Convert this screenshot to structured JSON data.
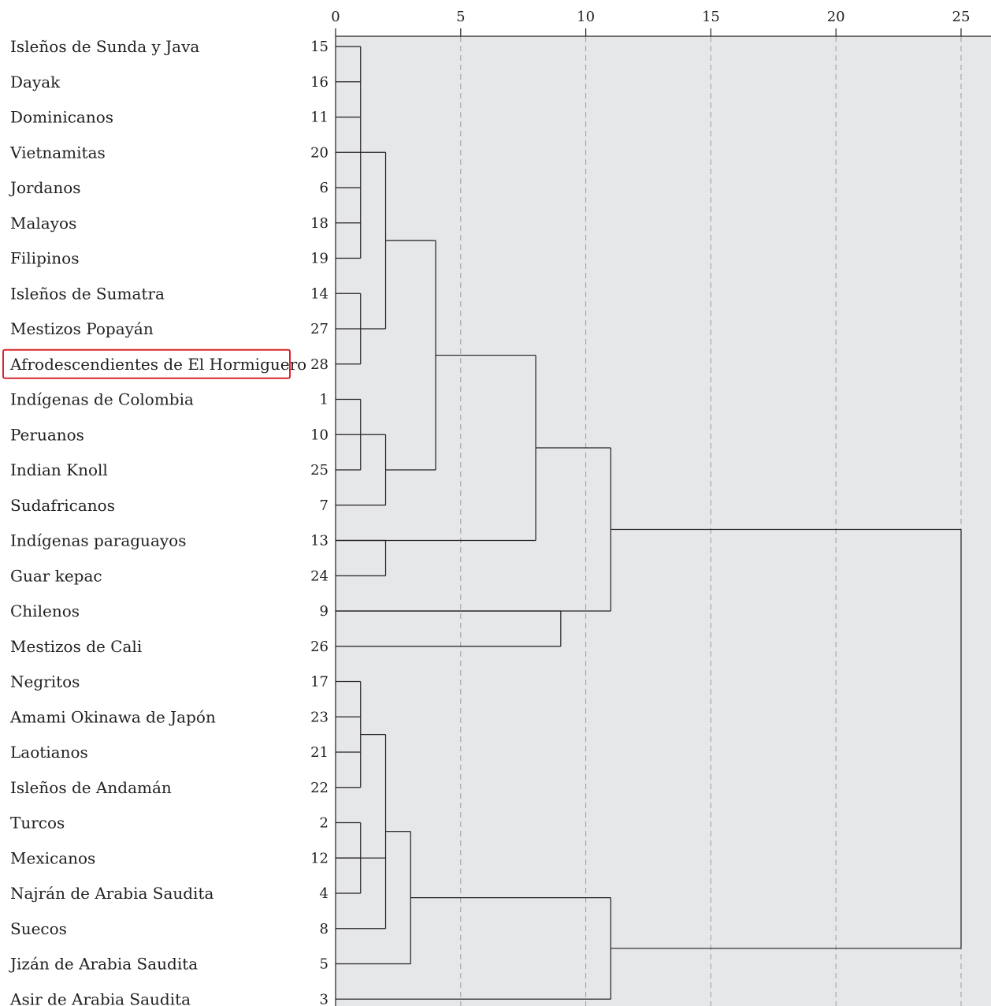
{
  "highlight_color": "#d7262b",
  "chart_data": {
    "type": "dendrogram",
    "title": "",
    "xlabel": "",
    "ylabel": "",
    "xlim": [
      0,
      25
    ],
    "x_ticks": [
      0,
      5,
      10,
      15,
      20,
      25
    ],
    "grid": "vertical dashed",
    "plot_background": "#e6e7e9",
    "highlighted_leaf": "Afrodescendientes de El Hormiguero",
    "leaves": [
      {
        "name": "Isleños de Sunda y Java",
        "id": "15"
      },
      {
        "name": "Dayak",
        "id": "16"
      },
      {
        "name": "Dominicanos",
        "id": "11"
      },
      {
        "name": "Vietnamitas",
        "id": "20"
      },
      {
        "name": "Jordanos",
        "id": "6"
      },
      {
        "name": "Malayos",
        "id": "18"
      },
      {
        "name": "Filipinos",
        "id": "19"
      },
      {
        "name": "Isleños de Sumatra",
        "id": "14"
      },
      {
        "name": "Mestizos Popayán",
        "id": "27"
      },
      {
        "name": "Afrodescendientes de El Hormiguero",
        "id": "28"
      },
      {
        "name": "Indígenas de Colombia",
        "id": "1"
      },
      {
        "name": "Peruanos",
        "id": "10"
      },
      {
        "name": "Indian Knoll",
        "id": "25"
      },
      {
        "name": "Sudafricanos",
        "id": "7"
      },
      {
        "name": "Indígenas paraguayos",
        "id": "13"
      },
      {
        "name": "Guar kepac",
        "id": "24"
      },
      {
        "name": "Chilenos",
        "id": "9"
      },
      {
        "name": "Mestizos de Cali",
        "id": "26"
      },
      {
        "name": "Negritos",
        "id": "17"
      },
      {
        "name": "Amami Okinawa de Japón",
        "id": "23"
      },
      {
        "name": "Laotianos",
        "id": "21"
      },
      {
        "name": "Isleños de Andamán",
        "id": "22"
      },
      {
        "name": "Turcos",
        "id": "2"
      },
      {
        "name": "Mexicanos",
        "id": "12"
      },
      {
        "name": "Najrán de Arabia Saudita",
        "id": "4"
      },
      {
        "name": "Suecos",
        "id": "8"
      },
      {
        "name": "Jizán de Arabia Saudita",
        "id": "5"
      },
      {
        "name": "Asir de Arabia Saudita",
        "id": "3"
      }
    ],
    "merges": [
      {
        "id": "A",
        "height": 1,
        "children": [
          "L0",
          "L1",
          "L2",
          "L3",
          "L4",
          "L5",
          "L6"
        ]
      },
      {
        "id": "B",
        "height": 1,
        "children": [
          "L7",
          "L8",
          "L9"
        ]
      },
      {
        "id": "C",
        "height": 2,
        "children": [
          "A",
          "B"
        ]
      },
      {
        "id": "D",
        "height": 1,
        "children": [
          "L10",
          "L11",
          "L12"
        ]
      },
      {
        "id": "E",
        "height": 2,
        "children": [
          "D",
          "L13"
        ]
      },
      {
        "id": "F",
        "height": 4,
        "children": [
          "C",
          "E"
        ]
      },
      {
        "id": "G",
        "height": 2,
        "children": [
          "L14",
          "L15"
        ]
      },
      {
        "id": "H",
        "height": 8,
        "children": [
          "F",
          "L14"
        ]
      },
      {
        "id": "I",
        "height": 9,
        "children": [
          "L16",
          "L17"
        ]
      },
      {
        "id": "J",
        "height": 11,
        "children": [
          "H",
          "L16"
        ]
      },
      {
        "id": "K",
        "height": 1,
        "children": [
          "L18",
          "L19",
          "L20",
          "L21"
        ]
      },
      {
        "id": "M",
        "height": 1,
        "children": [
          "L22",
          "L23",
          "L24"
        ]
      },
      {
        "id": "N",
        "height": 2,
        "children": [
          "K",
          "L23",
          "L25"
        ]
      },
      {
        "id": "O",
        "height": 3,
        "children": [
          "N",
          "L26"
        ]
      },
      {
        "id": "P",
        "height": 11,
        "children": [
          "O",
          "L27"
        ]
      },
      {
        "id": "Q",
        "height": 25,
        "children": [
          "J",
          "P"
        ]
      }
    ]
  }
}
